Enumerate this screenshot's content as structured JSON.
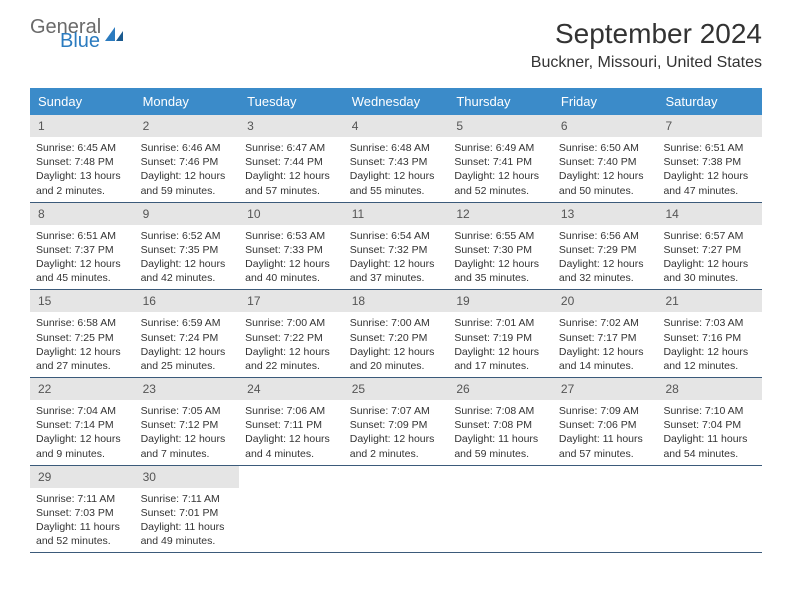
{
  "logo": {
    "text_general": "General",
    "text_blue": "Blue",
    "icon_color": "#2b7bbf"
  },
  "header": {
    "month_title": "September 2024",
    "location": "Buckner, Missouri, United States"
  },
  "colors": {
    "header_bg": "#3b8bc9",
    "header_text": "#ffffff",
    "daynum_bg": "#e5e5e5",
    "daynum_text": "#555555",
    "body_text": "#333333",
    "border": "#3b5a7a"
  },
  "day_labels": [
    "Sunday",
    "Monday",
    "Tuesday",
    "Wednesday",
    "Thursday",
    "Friday",
    "Saturday"
  ],
  "days": [
    {
      "num": "1",
      "sunrise": "6:45 AM",
      "sunset": "7:48 PM",
      "daylight": "13 hours and 2 minutes."
    },
    {
      "num": "2",
      "sunrise": "6:46 AM",
      "sunset": "7:46 PM",
      "daylight": "12 hours and 59 minutes."
    },
    {
      "num": "3",
      "sunrise": "6:47 AM",
      "sunset": "7:44 PM",
      "daylight": "12 hours and 57 minutes."
    },
    {
      "num": "4",
      "sunrise": "6:48 AM",
      "sunset": "7:43 PM",
      "daylight": "12 hours and 55 minutes."
    },
    {
      "num": "5",
      "sunrise": "6:49 AM",
      "sunset": "7:41 PM",
      "daylight": "12 hours and 52 minutes."
    },
    {
      "num": "6",
      "sunrise": "6:50 AM",
      "sunset": "7:40 PM",
      "daylight": "12 hours and 50 minutes."
    },
    {
      "num": "7",
      "sunrise": "6:51 AM",
      "sunset": "7:38 PM",
      "daylight": "12 hours and 47 minutes."
    },
    {
      "num": "8",
      "sunrise": "6:51 AM",
      "sunset": "7:37 PM",
      "daylight": "12 hours and 45 minutes."
    },
    {
      "num": "9",
      "sunrise": "6:52 AM",
      "sunset": "7:35 PM",
      "daylight": "12 hours and 42 minutes."
    },
    {
      "num": "10",
      "sunrise": "6:53 AM",
      "sunset": "7:33 PM",
      "daylight": "12 hours and 40 minutes."
    },
    {
      "num": "11",
      "sunrise": "6:54 AM",
      "sunset": "7:32 PM",
      "daylight": "12 hours and 37 minutes."
    },
    {
      "num": "12",
      "sunrise": "6:55 AM",
      "sunset": "7:30 PM",
      "daylight": "12 hours and 35 minutes."
    },
    {
      "num": "13",
      "sunrise": "6:56 AM",
      "sunset": "7:29 PM",
      "daylight": "12 hours and 32 minutes."
    },
    {
      "num": "14",
      "sunrise": "6:57 AM",
      "sunset": "7:27 PM",
      "daylight": "12 hours and 30 minutes."
    },
    {
      "num": "15",
      "sunrise": "6:58 AM",
      "sunset": "7:25 PM",
      "daylight": "12 hours and 27 minutes."
    },
    {
      "num": "16",
      "sunrise": "6:59 AM",
      "sunset": "7:24 PM",
      "daylight": "12 hours and 25 minutes."
    },
    {
      "num": "17",
      "sunrise": "7:00 AM",
      "sunset": "7:22 PM",
      "daylight": "12 hours and 22 minutes."
    },
    {
      "num": "18",
      "sunrise": "7:00 AM",
      "sunset": "7:20 PM",
      "daylight": "12 hours and 20 minutes."
    },
    {
      "num": "19",
      "sunrise": "7:01 AM",
      "sunset": "7:19 PM",
      "daylight": "12 hours and 17 minutes."
    },
    {
      "num": "20",
      "sunrise": "7:02 AM",
      "sunset": "7:17 PM",
      "daylight": "12 hours and 14 minutes."
    },
    {
      "num": "21",
      "sunrise": "7:03 AM",
      "sunset": "7:16 PM",
      "daylight": "12 hours and 12 minutes."
    },
    {
      "num": "22",
      "sunrise": "7:04 AM",
      "sunset": "7:14 PM",
      "daylight": "12 hours and 9 minutes."
    },
    {
      "num": "23",
      "sunrise": "7:05 AM",
      "sunset": "7:12 PM",
      "daylight": "12 hours and 7 minutes."
    },
    {
      "num": "24",
      "sunrise": "7:06 AM",
      "sunset": "7:11 PM",
      "daylight": "12 hours and 4 minutes."
    },
    {
      "num": "25",
      "sunrise": "7:07 AM",
      "sunset": "7:09 PM",
      "daylight": "12 hours and 2 minutes."
    },
    {
      "num": "26",
      "sunrise": "7:08 AM",
      "sunset": "7:08 PM",
      "daylight": "11 hours and 59 minutes."
    },
    {
      "num": "27",
      "sunrise": "7:09 AM",
      "sunset": "7:06 PM",
      "daylight": "11 hours and 57 minutes."
    },
    {
      "num": "28",
      "sunrise": "7:10 AM",
      "sunset": "7:04 PM",
      "daylight": "11 hours and 54 minutes."
    },
    {
      "num": "29",
      "sunrise": "7:11 AM",
      "sunset": "7:03 PM",
      "daylight": "11 hours and 52 minutes."
    },
    {
      "num": "30",
      "sunrise": "7:11 AM",
      "sunset": "7:01 PM",
      "daylight": "11 hours and 49 minutes."
    }
  ],
  "labels": {
    "sunrise_prefix": "Sunrise: ",
    "sunset_prefix": "Sunset: ",
    "daylight_prefix": "Daylight: "
  }
}
